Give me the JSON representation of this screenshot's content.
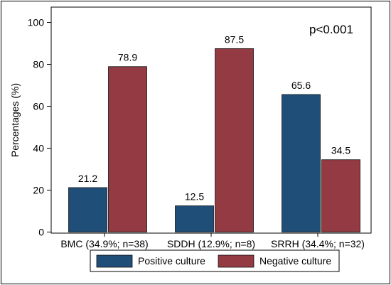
{
  "chart_data": {
    "type": "bar",
    "title": "",
    "xlabel": "",
    "ylabel": "Percentages (%)",
    "ylim": [
      0,
      100
    ],
    "yticks": [
      0,
      20,
      40,
      60,
      80,
      100
    ],
    "grid": false,
    "categories": [
      "BMC (34.9%; n=38)",
      "SDDH (12.9%; n=8)",
      "SRRH (34.4%; n=32)"
    ],
    "series": [
      {
        "name": "Positive culture",
        "color": "#1f4e79",
        "values": [
          21.2,
          12.5,
          65.6
        ],
        "labels": [
          "21.2",
          "12.5",
          "65.6"
        ]
      },
      {
        "name": "Negative culture",
        "color": "#943a43",
        "values": [
          78.9,
          87.5,
          34.5
        ],
        "labels": [
          "78.9",
          "87.5",
          "34.5"
        ]
      }
    ],
    "annotation": "p<0.001",
    "legend_position": "bottom"
  }
}
